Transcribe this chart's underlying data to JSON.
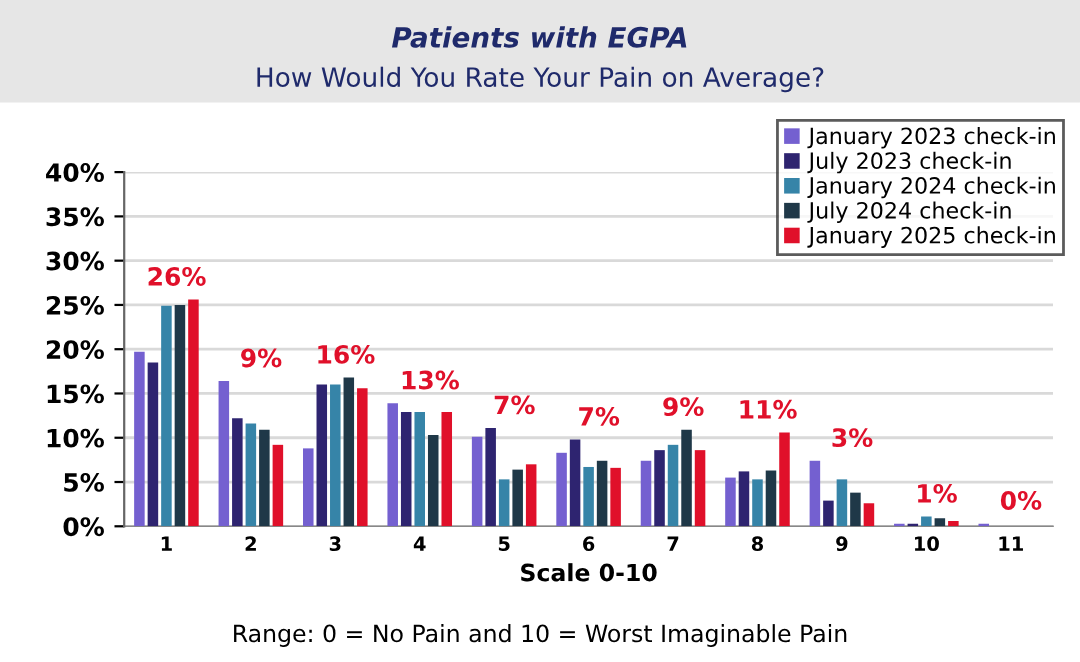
{
  "chart_data": {
    "type": "bar",
    "title": "Patients with EGPA",
    "subtitle": "How Would You Rate Your Pain on Average?",
    "xlabel": "Scale 0-10",
    "annotations": [
      "Range: 0 = No Pain and 10 = Worst Imaginable Pain"
    ],
    "categories": [
      "1",
      "2",
      "3",
      "4",
      "5",
      "6",
      "7",
      "8",
      "9",
      "10",
      "11"
    ],
    "series": [
      {
        "name": "January 2023 check-in",
        "color": "#7460d0",
        "values": [
          19.7,
          16.4,
          8.8,
          13.9,
          10.1,
          8.3,
          7.4,
          5.5,
          7.4,
          0.3,
          0.3
        ]
      },
      {
        "name": "July 2023 check-in",
        "color": "#2e2470",
        "values": [
          18.5,
          12.2,
          16.0,
          12.9,
          11.1,
          9.8,
          8.6,
          6.2,
          2.9,
          0.3,
          0
        ]
      },
      {
        "name": "January 2024 check-in",
        "color": "#3684a8",
        "values": [
          24.9,
          11.6,
          16.0,
          12.9,
          5.3,
          6.7,
          9.2,
          5.3,
          5.3,
          1.1,
          0
        ]
      },
      {
        "name": "July 2024 check-in",
        "color": "#1f3848",
        "values": [
          25.0,
          10.9,
          16.8,
          10.3,
          6.4,
          7.4,
          10.9,
          6.3,
          3.8,
          0.9,
          0
        ]
      },
      {
        "name": "January 2025 check-in",
        "color": "#e0102a",
        "values": [
          25.6,
          9.2,
          15.6,
          12.9,
          7.0,
          6.6,
          8.6,
          10.6,
          2.6,
          0.6,
          0
        ],
        "value_labels": [
          "26%",
          "9%",
          "16%",
          "13%",
          "7%",
          "7%",
          "9%",
          "11%",
          "3%",
          "1%",
          "0%"
        ]
      }
    ],
    "ylim": [
      0,
      40
    ],
    "yticks": [
      {
        "value": 0,
        "label": "0%"
      },
      {
        "value": 5,
        "label": "5%"
      },
      {
        "value": 10,
        "label": "10%"
      },
      {
        "value": 15,
        "label": "15%"
      },
      {
        "value": 20,
        "label": "20%"
      },
      {
        "value": 25,
        "label": "25%"
      },
      {
        "value": 30,
        "label": "30%"
      },
      {
        "value": 35,
        "label": "35%"
      },
      {
        "value": 40,
        "label": "40%"
      }
    ],
    "grid": "y",
    "legend": "top right"
  }
}
